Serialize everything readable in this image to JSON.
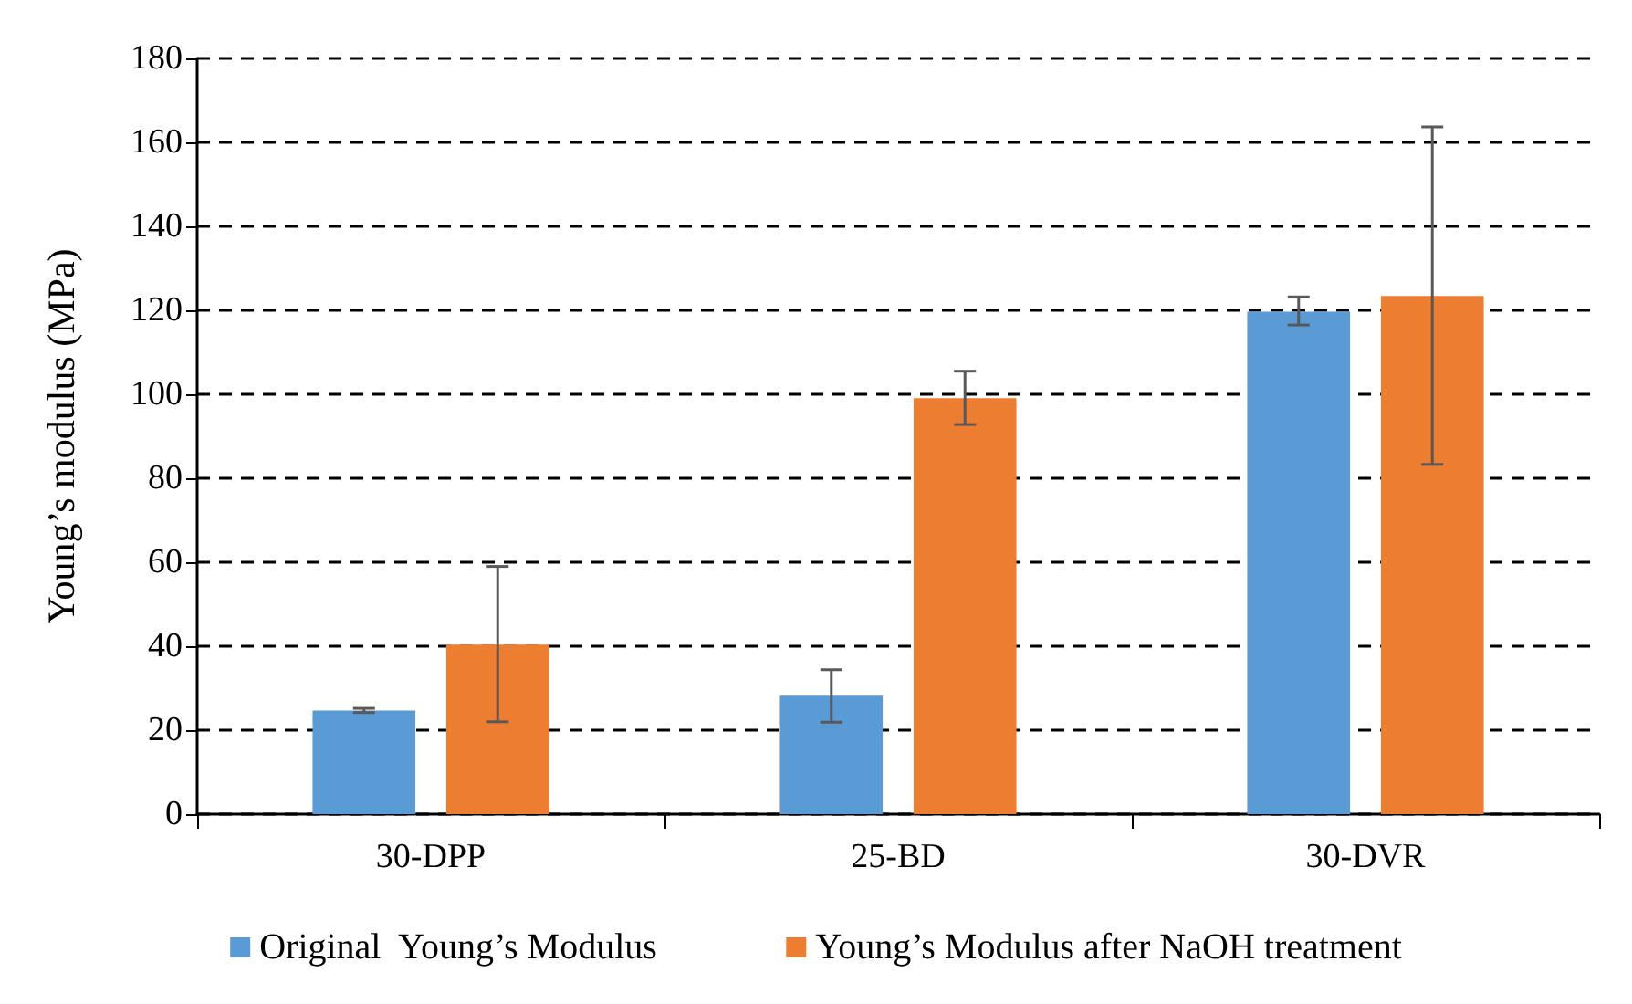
{
  "chart_data": {
    "type": "bar",
    "ylabel": "Young’s modulus (MPa)",
    "categories": [
      "30-DPP",
      "25-BD",
      "30-DVR"
    ],
    "series": [
      {
        "name": "Original  Young’s Modulus",
        "color": "#5b9bd5",
        "values": [
          24.7,
          28.2,
          119.7
        ],
        "errors": [
          [
            24.2,
            25.2
          ],
          [
            21.9,
            34.4
          ],
          [
            116.5,
            123.2
          ]
        ]
      },
      {
        "name": "Young’s Modulus after NaOH treatment",
        "color": "#ed7d31",
        "values": [
          40.4,
          99.1,
          123.4
        ],
        "errors": [
          [
            22,
            59
          ],
          [
            92.8,
            105.5
          ],
          [
            83.3,
            163.7
          ]
        ]
      }
    ],
    "ylim": [
      0,
      180
    ],
    "yticks": [
      0,
      20,
      40,
      60,
      80,
      100,
      120,
      140,
      160,
      180
    ],
    "grid": "y",
    "legend": "bottom"
  }
}
